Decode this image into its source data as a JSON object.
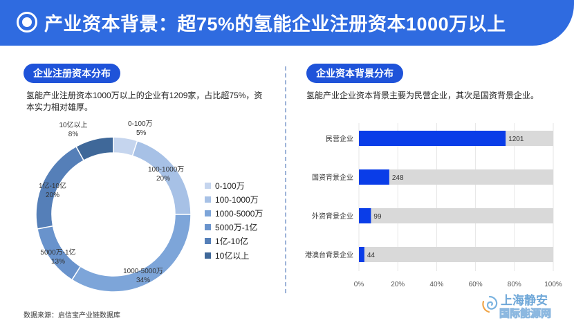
{
  "header": {
    "title": "产业资本背景：超75%的氢能企业注册资本1000万以上"
  },
  "left_panel": {
    "section_title": "企业注册资本分布",
    "description": "氢能产业注册资本1000万以上的企业有1209家，占比超75%，资本实力相对雄厚。"
  },
  "right_panel": {
    "section_title": "企业资本背景分布",
    "description": "氢能产业企业资本背景主要为民营企业，其次是国资背景企业。"
  },
  "footer": {
    "source": "数据来源：启信宝产业链数据库"
  },
  "watermark": {
    "text1": "上海静安",
    "text2": "国际能源网"
  },
  "colors": {
    "banner": "#2f6be0",
    "pill": "#1f53d9",
    "bar_fill": "#0a3de8",
    "bar_track": "#d9d9d9"
  },
  "chart_data": [
    {
      "type": "pie",
      "title": "",
      "donut": true,
      "categories": [
        "0-100万",
        "100-1000万",
        "1000-5000万",
        "5000万-1亿",
        "1亿-10亿",
        "10亿以上"
      ],
      "values": [
        5,
        20,
        34,
        13,
        20,
        8
      ],
      "value_labels": [
        "5%",
        "20%",
        "34%",
        "13%",
        "20%",
        "8%"
      ],
      "colors": [
        "#c5d5ee",
        "#a7c1e6",
        "#7da5d9",
        "#6993cc",
        "#557fb8",
        "#3f6899"
      ],
      "legend_position": "right"
    },
    {
      "type": "bar",
      "orientation": "horizontal",
      "title": "",
      "categories": [
        "民营企业",
        "国资背景企业",
        "外资背景企业",
        "港澳台背景企业"
      ],
      "values": [
        1201,
        248,
        99,
        44
      ],
      "shares": [
        0.755,
        0.156,
        0.062,
        0.028
      ],
      "xlim": [
        0,
        1
      ],
      "xticks": [
        "0%",
        "20%",
        "40%",
        "60%",
        "80%",
        "100%"
      ],
      "grid": true
    }
  ]
}
